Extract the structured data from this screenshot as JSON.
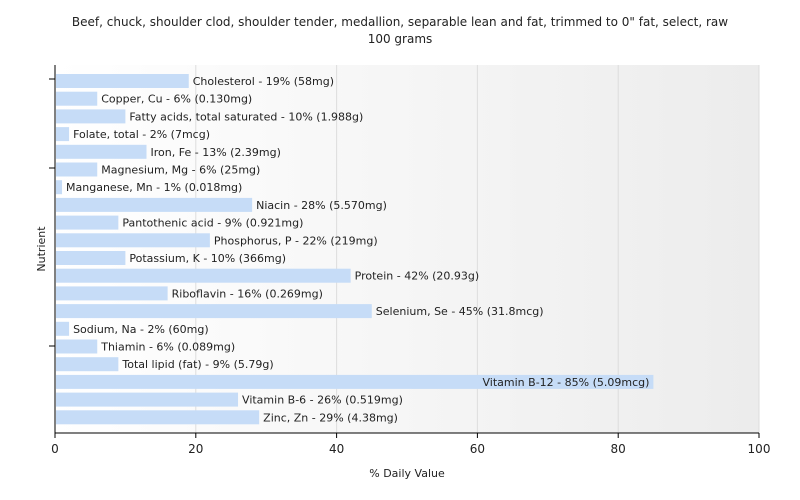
{
  "chart_data": {
    "type": "bar",
    "orientation": "horizontal",
    "title_line1": "Beef, chuck, shoulder clod, shoulder tender, medallion, separable lean and fat, trimmed to 0\" fat, select, raw",
    "title_line2": "100 grams",
    "xlabel": "% Daily Value",
    "ylabel": "Nutrient",
    "xlim": [
      0,
      100
    ],
    "xticks": [
      0,
      20,
      40,
      60,
      80,
      100
    ],
    "grid": true,
    "bar_color": "#c6dcf7",
    "categories": [
      "Cholesterol",
      "Copper, Cu",
      "Fatty acids, total saturated",
      "Folate, total",
      "Iron, Fe",
      "Magnesium, Mg",
      "Manganese, Mn",
      "Niacin",
      "Pantothenic acid",
      "Phosphorus, P",
      "Potassium, K",
      "Protein",
      "Riboflavin",
      "Selenium, Se",
      "Sodium, Na",
      "Thiamin",
      "Total lipid (fat)",
      "Vitamin B-12",
      "Vitamin B-6",
      "Zinc, Zn"
    ],
    "values": [
      19,
      6,
      10,
      2,
      13,
      6,
      1,
      28,
      9,
      22,
      10,
      42,
      16,
      45,
      2,
      6,
      9,
      85,
      26,
      29
    ],
    "labels": [
      "Cholesterol - 19% (58mg)",
      "Copper, Cu - 6% (0.130mg)",
      "Fatty acids, total saturated - 10% (1.988g)",
      "Folate, total - 2% (7mcg)",
      "Iron, Fe - 13% (2.39mg)",
      "Magnesium, Mg - 6% (25mg)",
      "Manganese, Mn - 1% (0.018mg)",
      "Niacin - 28% (5.570mg)",
      "Pantothenic acid - 9% (0.921mg)",
      "Phosphorus, P - 22% (219mg)",
      "Potassium, K - 10% (366mg)",
      "Protein - 42% (20.93g)",
      "Riboflavin - 16% (0.269mg)",
      "Selenium, Se - 45% (31.8mcg)",
      "Sodium, Na - 2% (60mg)",
      "Thiamin - 6% (0.089mg)",
      "Total lipid (fat) - 9% (5.79g)",
      "Vitamin B-12 - 85% (5.09mcg)",
      "Vitamin B-6 - 26% (0.519mg)",
      "Zinc, Zn - 29% (4.38mg)"
    ]
  }
}
